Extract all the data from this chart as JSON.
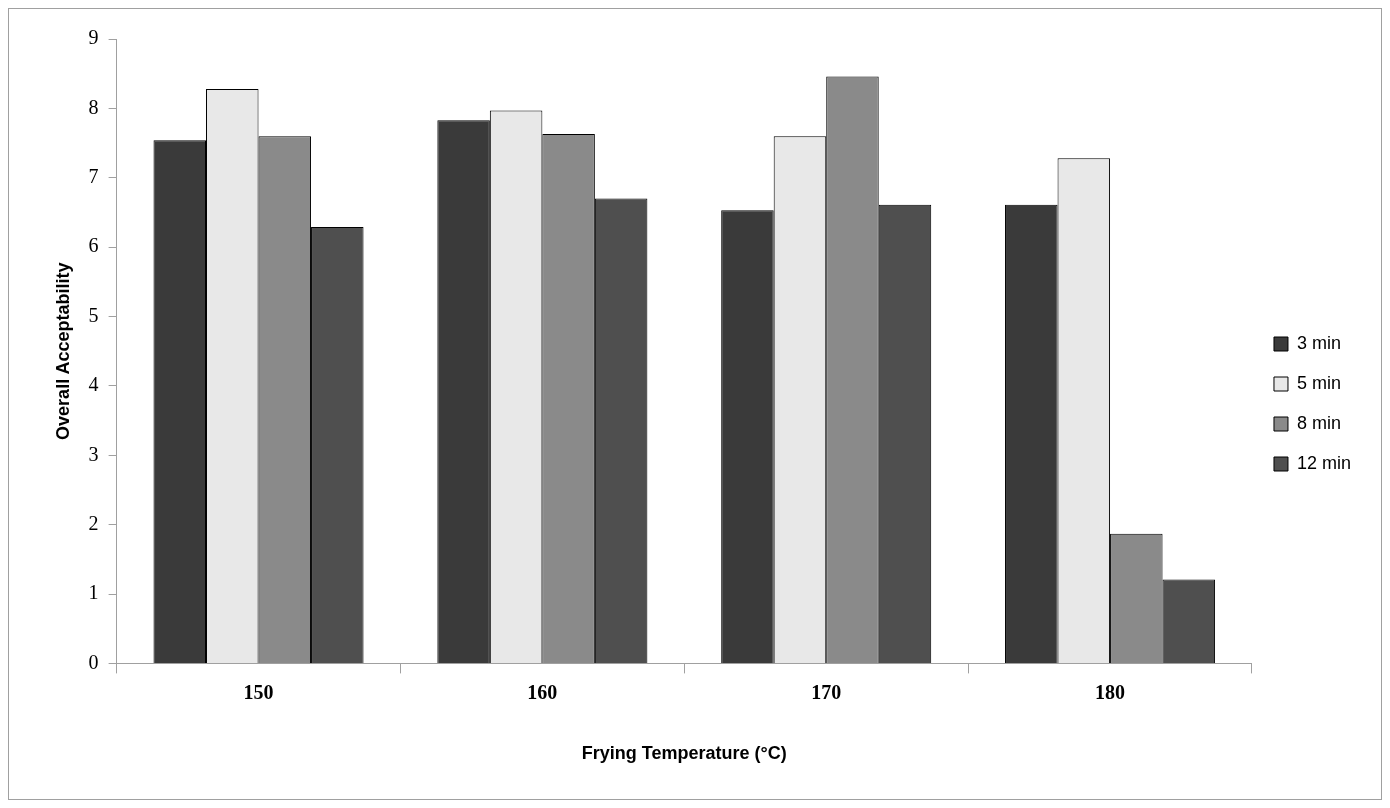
{
  "chart_data": {
    "type": "bar",
    "xlabel": "Frying Temperature (°C)",
    "ylabel": "Overall Acceptability",
    "categories": [
      "150",
      "160",
      "170",
      "180"
    ],
    "series": [
      {
        "name": "3 min",
        "color": "#3a3a3a",
        "values": [
          7.54,
          7.83,
          6.53,
          6.61
        ]
      },
      {
        "name": "5 min",
        "color": "#e8e8e8",
        "values": [
          8.28,
          7.97,
          7.6,
          7.28
        ]
      },
      {
        "name": "8 min",
        "color": "#8a8a8a",
        "values": [
          7.6,
          7.63,
          8.46,
          1.87
        ]
      },
      {
        "name": "12 min",
        "color": "#4f4f4f",
        "values": [
          6.29,
          6.7,
          6.61,
          1.21
        ]
      }
    ],
    "ylim": [
      0,
      9
    ],
    "yticks": [
      0,
      1,
      2,
      3,
      4,
      5,
      6,
      7,
      8,
      9
    ],
    "grid": false,
    "legend": "right"
  }
}
